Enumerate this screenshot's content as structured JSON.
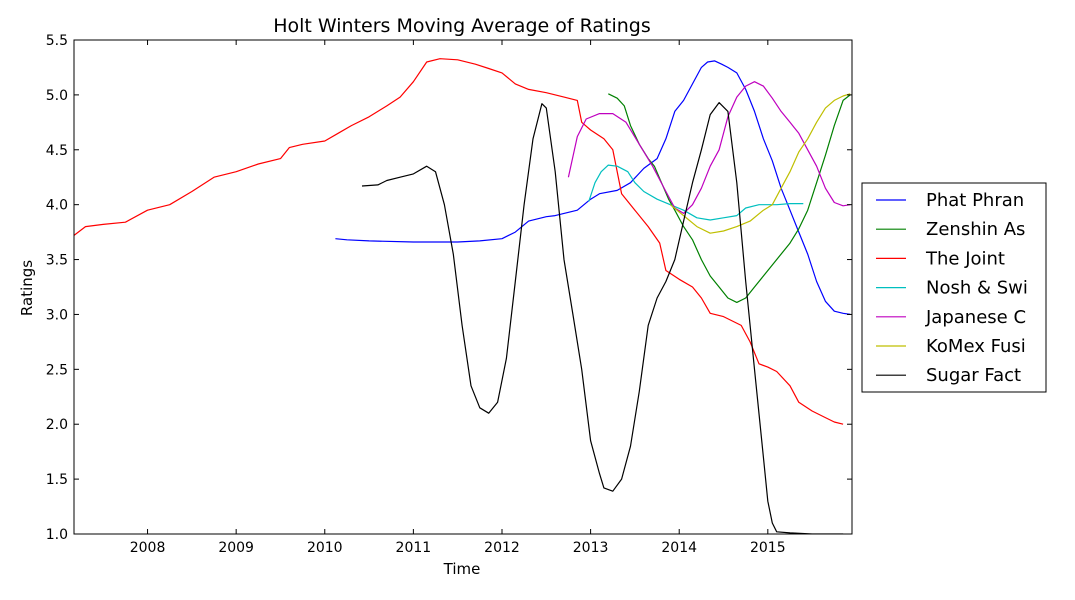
{
  "chart_data": {
    "type": "line",
    "title": "Holt Winters Moving Average of Ratings",
    "xlabel": "Time",
    "ylabel": "Ratings",
    "xlim": [
      2007.17,
      2015.95
    ],
    "ylim": [
      1.0,
      5.5
    ],
    "xticks": [
      "2008",
      "2009",
      "2010",
      "2011",
      "2012",
      "2013",
      "2014",
      "2015"
    ],
    "yticks": [
      "1.0",
      "1.5",
      "2.0",
      "2.5",
      "3.0",
      "3.5",
      "4.0",
      "4.5",
      "5.0",
      "5.5"
    ],
    "grid": false,
    "legend_position": "right, outside",
    "series": [
      {
        "name": "Phat Phran",
        "color": "#0000ff",
        "points": [
          [
            2010.12,
            3.69
          ],
          [
            2010.25,
            3.68
          ],
          [
            2010.5,
            3.67
          ],
          [
            2011.0,
            3.66
          ],
          [
            2011.5,
            3.66
          ],
          [
            2011.75,
            3.67
          ],
          [
            2012.0,
            3.69
          ],
          [
            2012.15,
            3.75
          ],
          [
            2012.3,
            3.85
          ],
          [
            2012.5,
            3.89
          ],
          [
            2012.6,
            3.9
          ],
          [
            2012.85,
            3.95
          ],
          [
            2013.0,
            4.05
          ],
          [
            2013.1,
            4.1
          ],
          [
            2013.3,
            4.13
          ],
          [
            2013.45,
            4.2
          ],
          [
            2013.6,
            4.33
          ],
          [
            2013.75,
            4.42
          ],
          [
            2013.85,
            4.6
          ],
          [
            2013.95,
            4.85
          ],
          [
            2014.05,
            4.95
          ],
          [
            2014.15,
            5.1
          ],
          [
            2014.25,
            5.25
          ],
          [
            2014.32,
            5.3
          ],
          [
            2014.4,
            5.31
          ],
          [
            2014.48,
            5.28
          ],
          [
            2014.55,
            5.25
          ],
          [
            2014.65,
            5.2
          ],
          [
            2014.75,
            5.05
          ],
          [
            2014.85,
            4.85
          ],
          [
            2014.95,
            4.6
          ],
          [
            2015.05,
            4.4
          ],
          [
            2015.15,
            4.15
          ],
          [
            2015.25,
            3.95
          ],
          [
            2015.35,
            3.75
          ],
          [
            2015.45,
            3.55
          ],
          [
            2015.55,
            3.3
          ],
          [
            2015.65,
            3.12
          ],
          [
            2015.75,
            3.03
          ],
          [
            2015.85,
            3.01
          ],
          [
            2015.93,
            3.0
          ]
        ]
      },
      {
        "name": "Zenshin As",
        "color": "#008000",
        "points": [
          [
            2013.2,
            5.01
          ],
          [
            2013.3,
            4.97
          ],
          [
            2013.38,
            4.9
          ],
          [
            2013.45,
            4.72
          ],
          [
            2013.55,
            4.55
          ],
          [
            2013.65,
            4.42
          ],
          [
            2013.72,
            4.35
          ],
          [
            2013.8,
            4.2
          ],
          [
            2013.88,
            4.05
          ],
          [
            2013.95,
            3.95
          ],
          [
            2014.05,
            3.8
          ],
          [
            2014.15,
            3.68
          ],
          [
            2014.25,
            3.5
          ],
          [
            2014.35,
            3.35
          ],
          [
            2014.45,
            3.25
          ],
          [
            2014.55,
            3.15
          ],
          [
            2014.65,
            3.11
          ],
          [
            2014.75,
            3.15
          ],
          [
            2014.85,
            3.25
          ],
          [
            2014.95,
            3.35
          ],
          [
            2015.05,
            3.45
          ],
          [
            2015.15,
            3.55
          ],
          [
            2015.25,
            3.65
          ],
          [
            2015.35,
            3.78
          ],
          [
            2015.45,
            3.95
          ],
          [
            2015.55,
            4.2
          ],
          [
            2015.65,
            4.45
          ],
          [
            2015.75,
            4.72
          ],
          [
            2015.85,
            4.95
          ],
          [
            2015.93,
            5.0
          ]
        ]
      },
      {
        "name": "The Joint",
        "color": "#ff0000",
        "points": [
          [
            2007.17,
            3.72
          ],
          [
            2007.3,
            3.8
          ],
          [
            2007.5,
            3.82
          ],
          [
            2007.75,
            3.84
          ],
          [
            2008.0,
            3.95
          ],
          [
            2008.25,
            4.0
          ],
          [
            2008.5,
            4.12
          ],
          [
            2008.75,
            4.25
          ],
          [
            2009.0,
            4.3
          ],
          [
            2009.25,
            4.37
          ],
          [
            2009.5,
            4.42
          ],
          [
            2009.6,
            4.52
          ],
          [
            2009.75,
            4.55
          ],
          [
            2010.0,
            4.58
          ],
          [
            2010.15,
            4.65
          ],
          [
            2010.3,
            4.72
          ],
          [
            2010.5,
            4.8
          ],
          [
            2010.7,
            4.9
          ],
          [
            2010.85,
            4.98
          ],
          [
            2011.0,
            5.12
          ],
          [
            2011.15,
            5.3
          ],
          [
            2011.3,
            5.33
          ],
          [
            2011.5,
            5.32
          ],
          [
            2011.7,
            5.28
          ],
          [
            2011.85,
            5.24
          ],
          [
            2012.0,
            5.2
          ],
          [
            2012.15,
            5.1
          ],
          [
            2012.3,
            5.05
          ],
          [
            2012.5,
            5.02
          ],
          [
            2012.7,
            4.98
          ],
          [
            2012.85,
            4.95
          ],
          [
            2012.9,
            4.75
          ],
          [
            2013.0,
            4.68
          ],
          [
            2013.15,
            4.6
          ],
          [
            2013.25,
            4.5
          ],
          [
            2013.35,
            4.1
          ],
          [
            2013.5,
            3.95
          ],
          [
            2013.65,
            3.8
          ],
          [
            2013.78,
            3.65
          ],
          [
            2013.85,
            3.4
          ],
          [
            2014.0,
            3.32
          ],
          [
            2014.15,
            3.25
          ],
          [
            2014.25,
            3.15
          ],
          [
            2014.35,
            3.01
          ],
          [
            2014.5,
            2.98
          ],
          [
            2014.7,
            2.9
          ],
          [
            2014.8,
            2.75
          ],
          [
            2014.9,
            2.55
          ],
          [
            2015.0,
            2.52
          ],
          [
            2015.1,
            2.48
          ],
          [
            2015.25,
            2.35
          ],
          [
            2015.35,
            2.2
          ],
          [
            2015.5,
            2.12
          ],
          [
            2015.65,
            2.06
          ],
          [
            2015.75,
            2.02
          ],
          [
            2015.85,
            2.0
          ]
        ]
      },
      {
        "name": "Nosh & Swi",
        "color": "#00bfbf",
        "points": [
          [
            2012.98,
            4.03
          ],
          [
            2013.05,
            4.2
          ],
          [
            2013.12,
            4.3
          ],
          [
            2013.2,
            4.36
          ],
          [
            2013.3,
            4.35
          ],
          [
            2013.42,
            4.3
          ],
          [
            2013.5,
            4.2
          ],
          [
            2013.6,
            4.12
          ],
          [
            2013.75,
            4.05
          ],
          [
            2013.9,
            4.0
          ],
          [
            2014.05,
            3.95
          ],
          [
            2014.2,
            3.88
          ],
          [
            2014.35,
            3.86
          ],
          [
            2014.5,
            3.88
          ],
          [
            2014.65,
            3.9
          ],
          [
            2014.75,
            3.97
          ],
          [
            2014.9,
            4.0
          ],
          [
            2015.1,
            4.0
          ],
          [
            2015.25,
            4.01
          ],
          [
            2015.4,
            4.01
          ]
        ]
      },
      {
        "name": "Japanese C",
        "color": "#bf00bf",
        "points": [
          [
            2012.75,
            4.25
          ],
          [
            2012.85,
            4.62
          ],
          [
            2012.95,
            4.78
          ],
          [
            2013.1,
            4.83
          ],
          [
            2013.25,
            4.83
          ],
          [
            2013.4,
            4.75
          ],
          [
            2013.55,
            4.55
          ],
          [
            2013.7,
            4.35
          ],
          [
            2013.85,
            4.12
          ],
          [
            2013.95,
            3.97
          ],
          [
            2014.05,
            3.92
          ],
          [
            2014.15,
            4.0
          ],
          [
            2014.25,
            4.15
          ],
          [
            2014.35,
            4.35
          ],
          [
            2014.45,
            4.5
          ],
          [
            2014.55,
            4.8
          ],
          [
            2014.65,
            4.98
          ],
          [
            2014.75,
            5.08
          ],
          [
            2014.85,
            5.12
          ],
          [
            2014.95,
            5.08
          ],
          [
            2015.05,
            4.97
          ],
          [
            2015.15,
            4.85
          ],
          [
            2015.25,
            4.75
          ],
          [
            2015.35,
            4.65
          ],
          [
            2015.45,
            4.5
          ],
          [
            2015.55,
            4.35
          ],
          [
            2015.65,
            4.15
          ],
          [
            2015.75,
            4.02
          ],
          [
            2015.85,
            3.99
          ],
          [
            2015.93,
            4.0
          ]
        ]
      },
      {
        "name": "KoMex Fusi",
        "color": "#bfbf00",
        "points": [
          [
            2013.9,
            4.0
          ],
          [
            2014.05,
            3.9
          ],
          [
            2014.2,
            3.8
          ],
          [
            2014.35,
            3.74
          ],
          [
            2014.5,
            3.76
          ],
          [
            2014.65,
            3.8
          ],
          [
            2014.8,
            3.85
          ],
          [
            2014.95,
            3.95
          ],
          [
            2015.05,
            4.0
          ],
          [
            2015.15,
            4.15
          ],
          [
            2015.25,
            4.3
          ],
          [
            2015.35,
            4.48
          ],
          [
            2015.45,
            4.6
          ],
          [
            2015.55,
            4.75
          ],
          [
            2015.65,
            4.88
          ],
          [
            2015.75,
            4.95
          ],
          [
            2015.85,
            4.99
          ],
          [
            2015.93,
            5.01
          ]
        ]
      },
      {
        "name": "Sugar Fact",
        "color": "#000000",
        "points": [
          [
            2010.42,
            4.17
          ],
          [
            2010.6,
            4.18
          ],
          [
            2010.7,
            4.22
          ],
          [
            2010.85,
            4.25
          ],
          [
            2011.0,
            4.28
          ],
          [
            2011.15,
            4.35
          ],
          [
            2011.25,
            4.3
          ],
          [
            2011.35,
            4.0
          ],
          [
            2011.45,
            3.55
          ],
          [
            2011.55,
            2.9
          ],
          [
            2011.65,
            2.35
          ],
          [
            2011.75,
            2.15
          ],
          [
            2011.85,
            2.1
          ],
          [
            2011.95,
            2.2
          ],
          [
            2012.05,
            2.6
          ],
          [
            2012.15,
            3.3
          ],
          [
            2012.25,
            4.0
          ],
          [
            2012.35,
            4.6
          ],
          [
            2012.45,
            4.92
          ],
          [
            2012.5,
            4.88
          ],
          [
            2012.6,
            4.3
          ],
          [
            2012.7,
            3.5
          ],
          [
            2012.8,
            3.0
          ],
          [
            2012.9,
            2.5
          ],
          [
            2013.0,
            1.85
          ],
          [
            2013.1,
            1.55
          ],
          [
            2013.15,
            1.42
          ],
          [
            2013.25,
            1.39
          ],
          [
            2013.35,
            1.5
          ],
          [
            2013.45,
            1.8
          ],
          [
            2013.55,
            2.3
          ],
          [
            2013.65,
            2.9
          ],
          [
            2013.75,
            3.15
          ],
          [
            2013.85,
            3.3
          ],
          [
            2013.95,
            3.5
          ],
          [
            2014.05,
            3.85
          ],
          [
            2014.15,
            4.2
          ],
          [
            2014.25,
            4.5
          ],
          [
            2014.35,
            4.82
          ],
          [
            2014.45,
            4.93
          ],
          [
            2014.55,
            4.85
          ],
          [
            2014.65,
            4.2
          ],
          [
            2014.75,
            3.3
          ],
          [
            2014.85,
            2.5
          ],
          [
            2014.95,
            1.7
          ],
          [
            2015.0,
            1.3
          ],
          [
            2015.05,
            1.1
          ],
          [
            2015.1,
            1.02
          ],
          [
            2015.25,
            1.01
          ],
          [
            2015.5,
            1.0
          ],
          [
            2015.85,
            1.0
          ]
        ]
      }
    ]
  }
}
